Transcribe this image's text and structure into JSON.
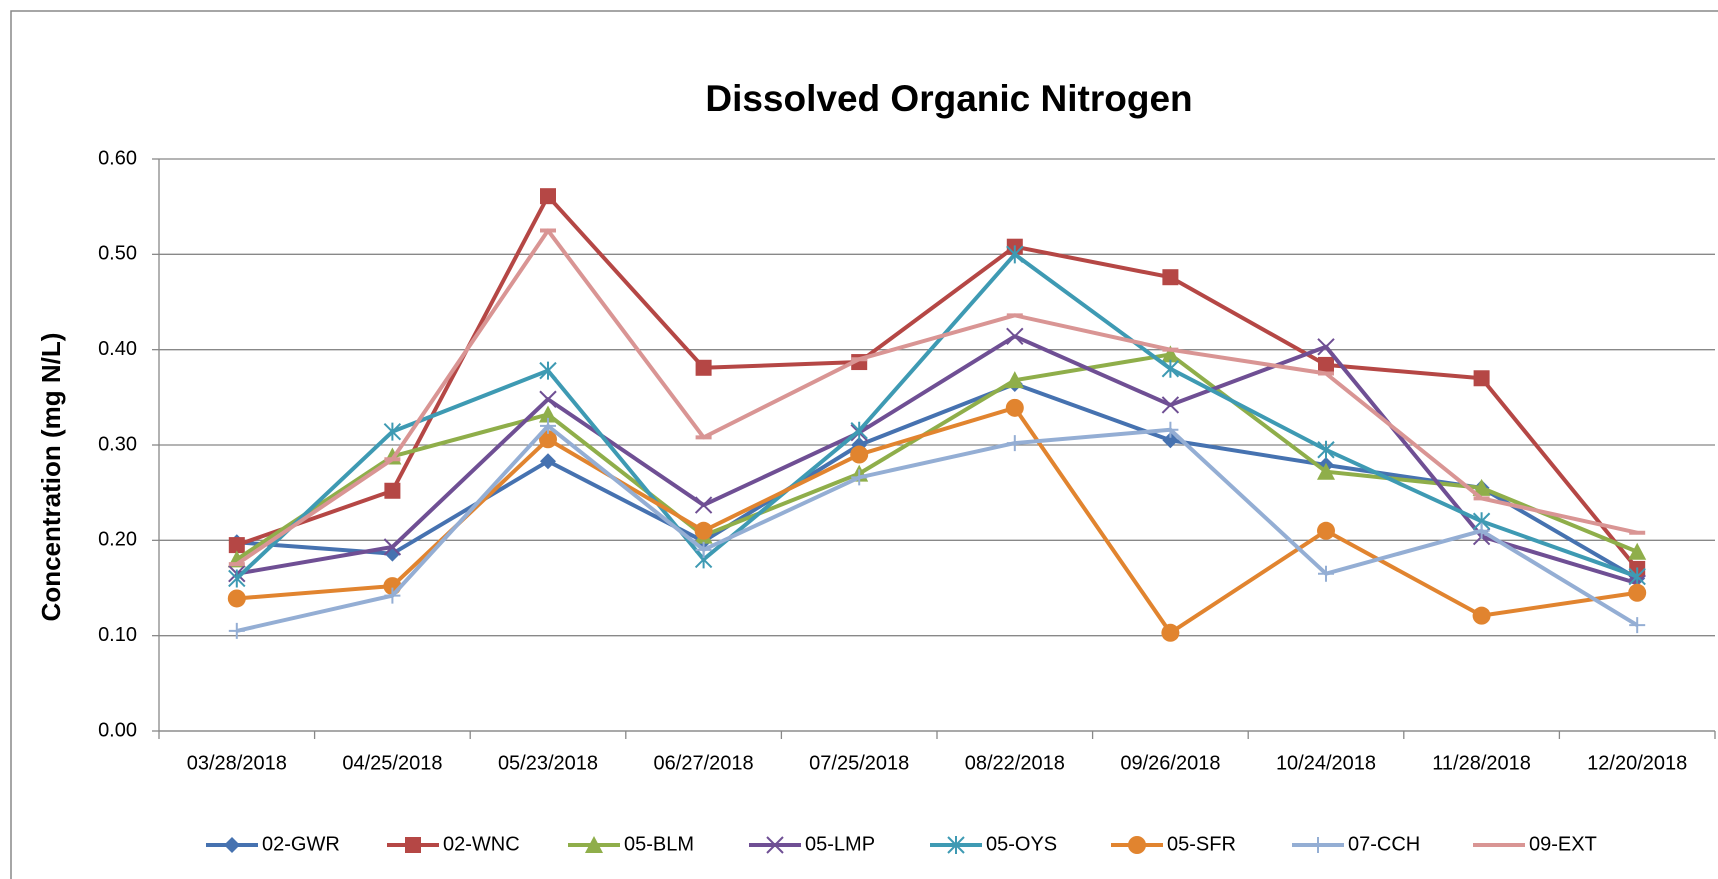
{
  "chart_data": {
    "type": "line",
    "title": "Dissolved Organic Nitrogen",
    "y_label": "Concentration (mg N/L)",
    "categories": [
      "03/28/2018",
      "04/25/2018",
      "05/23/2018",
      "06/27/2018",
      "07/25/2018",
      "08/22/2018",
      "09/26/2018",
      "10/24/2018",
      "11/28/2018",
      "12/20/2018"
    ],
    "ylim": [
      0,
      0.6
    ],
    "yticks": [
      {
        "value": 0,
        "label": "0.00"
      },
      {
        "value": 0.1,
        "label": "0.10"
      },
      {
        "value": 0.2,
        "label": "0.20"
      },
      {
        "value": 0.3,
        "label": "0.30"
      },
      {
        "value": 0.4,
        "label": "0.40"
      },
      {
        "value": 0.5,
        "label": "0.50"
      },
      {
        "value": 0.6,
        "label": "0.60"
      }
    ],
    "grid": true,
    "legend": "bottom",
    "series": [
      {
        "name": "02-GWR",
        "color": "#4672b0",
        "marker": "diamond",
        "values": [
          0.198,
          0.186,
          0.283,
          0.199,
          0.3,
          0.364,
          0.305,
          0.279,
          0.255,
          0.16
        ]
      },
      {
        "name": "02-WNC",
        "color": "#b54745",
        "marker": "square",
        "values": [
          0.195,
          0.252,
          0.561,
          0.381,
          0.387,
          0.508,
          0.476,
          0.384,
          0.37,
          0.17
        ]
      },
      {
        "name": "05-BLM",
        "color": "#8fae4a",
        "marker": "triangle",
        "values": [
          0.18,
          0.288,
          0.332,
          0.205,
          0.27,
          0.368,
          0.395,
          0.272,
          0.255,
          0.188
        ]
      },
      {
        "name": "05-LMP",
        "color": "#6f4f94",
        "marker": "x",
        "values": [
          0.165,
          0.193,
          0.348,
          0.237,
          0.313,
          0.414,
          0.342,
          0.403,
          0.204,
          0.155
        ]
      },
      {
        "name": "05-OYS",
        "color": "#3e9ab3",
        "marker": "star",
        "values": [
          0.16,
          0.314,
          0.378,
          0.18,
          0.315,
          0.5,
          0.38,
          0.295,
          0.22,
          0.162
        ]
      },
      {
        "name": "05-SFR",
        "color": "#e1842f",
        "marker": "circle",
        "values": [
          0.139,
          0.152,
          0.306,
          0.21,
          0.29,
          0.339,
          0.103,
          0.21,
          0.121,
          0.145
        ]
      },
      {
        "name": "07-CCH",
        "color": "#94aed4",
        "marker": "plus",
        "values": [
          0.105,
          0.142,
          0.32,
          0.19,
          0.266,
          0.302,
          0.316,
          0.165,
          0.21,
          0.111
        ]
      },
      {
        "name": "09-EXT",
        "color": "#d99594",
        "marker": "dash",
        "values": [
          0.175,
          0.285,
          0.525,
          0.308,
          0.39,
          0.436,
          0.4,
          0.375,
          0.244,
          0.208
        ]
      }
    ]
  }
}
